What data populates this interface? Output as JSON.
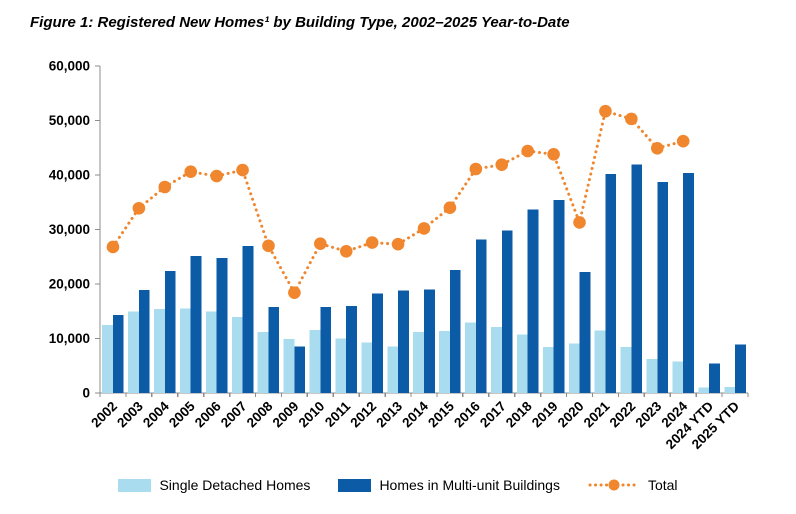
{
  "title": "Figure 1: Registered New Homes¹ by Building Type, 2002–2025 Year-to-Date",
  "chart_data": {
    "type": "bar",
    "subtype": "grouped-bars-with-dotted-total-line",
    "title": "Figure 1: Registered New Homes¹ by Building Type, 2002–2025 Year-to-Date",
    "xlabel": "",
    "ylabel": "",
    "ylim": [
      0,
      60000
    ],
    "ytick_step": 10000,
    "grid": false,
    "legend_position": "bottom",
    "categories": [
      "2002",
      "2003",
      "2004",
      "2005",
      "2006",
      "2007",
      "2008",
      "2009",
      "2010",
      "2011",
      "2012",
      "2013",
      "2014",
      "2015",
      "2016",
      "2017",
      "2018",
      "2019",
      "2020",
      "2021",
      "2022",
      "2023",
      "2024",
      "2024 YTD",
      "2025 YTD"
    ],
    "series": [
      {
        "name": "Single Detached Homes",
        "color": "#A9DCEE",
        "values": [
          12500,
          15000,
          15400,
          15500,
          15000,
          13900,
          11200,
          9900,
          11600,
          10000,
          9300,
          8500,
          11200,
          11400,
          12900,
          12100,
          10700,
          8400,
          9100,
          11500,
          8400,
          6200,
          5800,
          1000,
          1100
        ]
      },
      {
        "name": "Homes in Multi-unit Buildings",
        "color": "#0B5BA7",
        "values": [
          14300,
          18900,
          22400,
          25100,
          24800,
          27000,
          15800,
          8500,
          15800,
          16000,
          18300,
          18800,
          19000,
          22600,
          28200,
          29800,
          33700,
          35400,
          22200,
          40200,
          41900,
          38700,
          40400,
          5400,
          8900
        ]
      }
    ],
    "line_series": {
      "name": "Total",
      "color": "#F0862D",
      "values": [
        26800,
        33900,
        37800,
        40600,
        39800,
        40900,
        27000,
        18400,
        27400,
        26000,
        27600,
        27300,
        30200,
        34000,
        41100,
        41900,
        44400,
        43800,
        31300,
        51700,
        50300,
        44900,
        46200,
        null,
        null
      ]
    },
    "axis_color": "#8C8C8C",
    "tick_label_color": "#000000"
  }
}
